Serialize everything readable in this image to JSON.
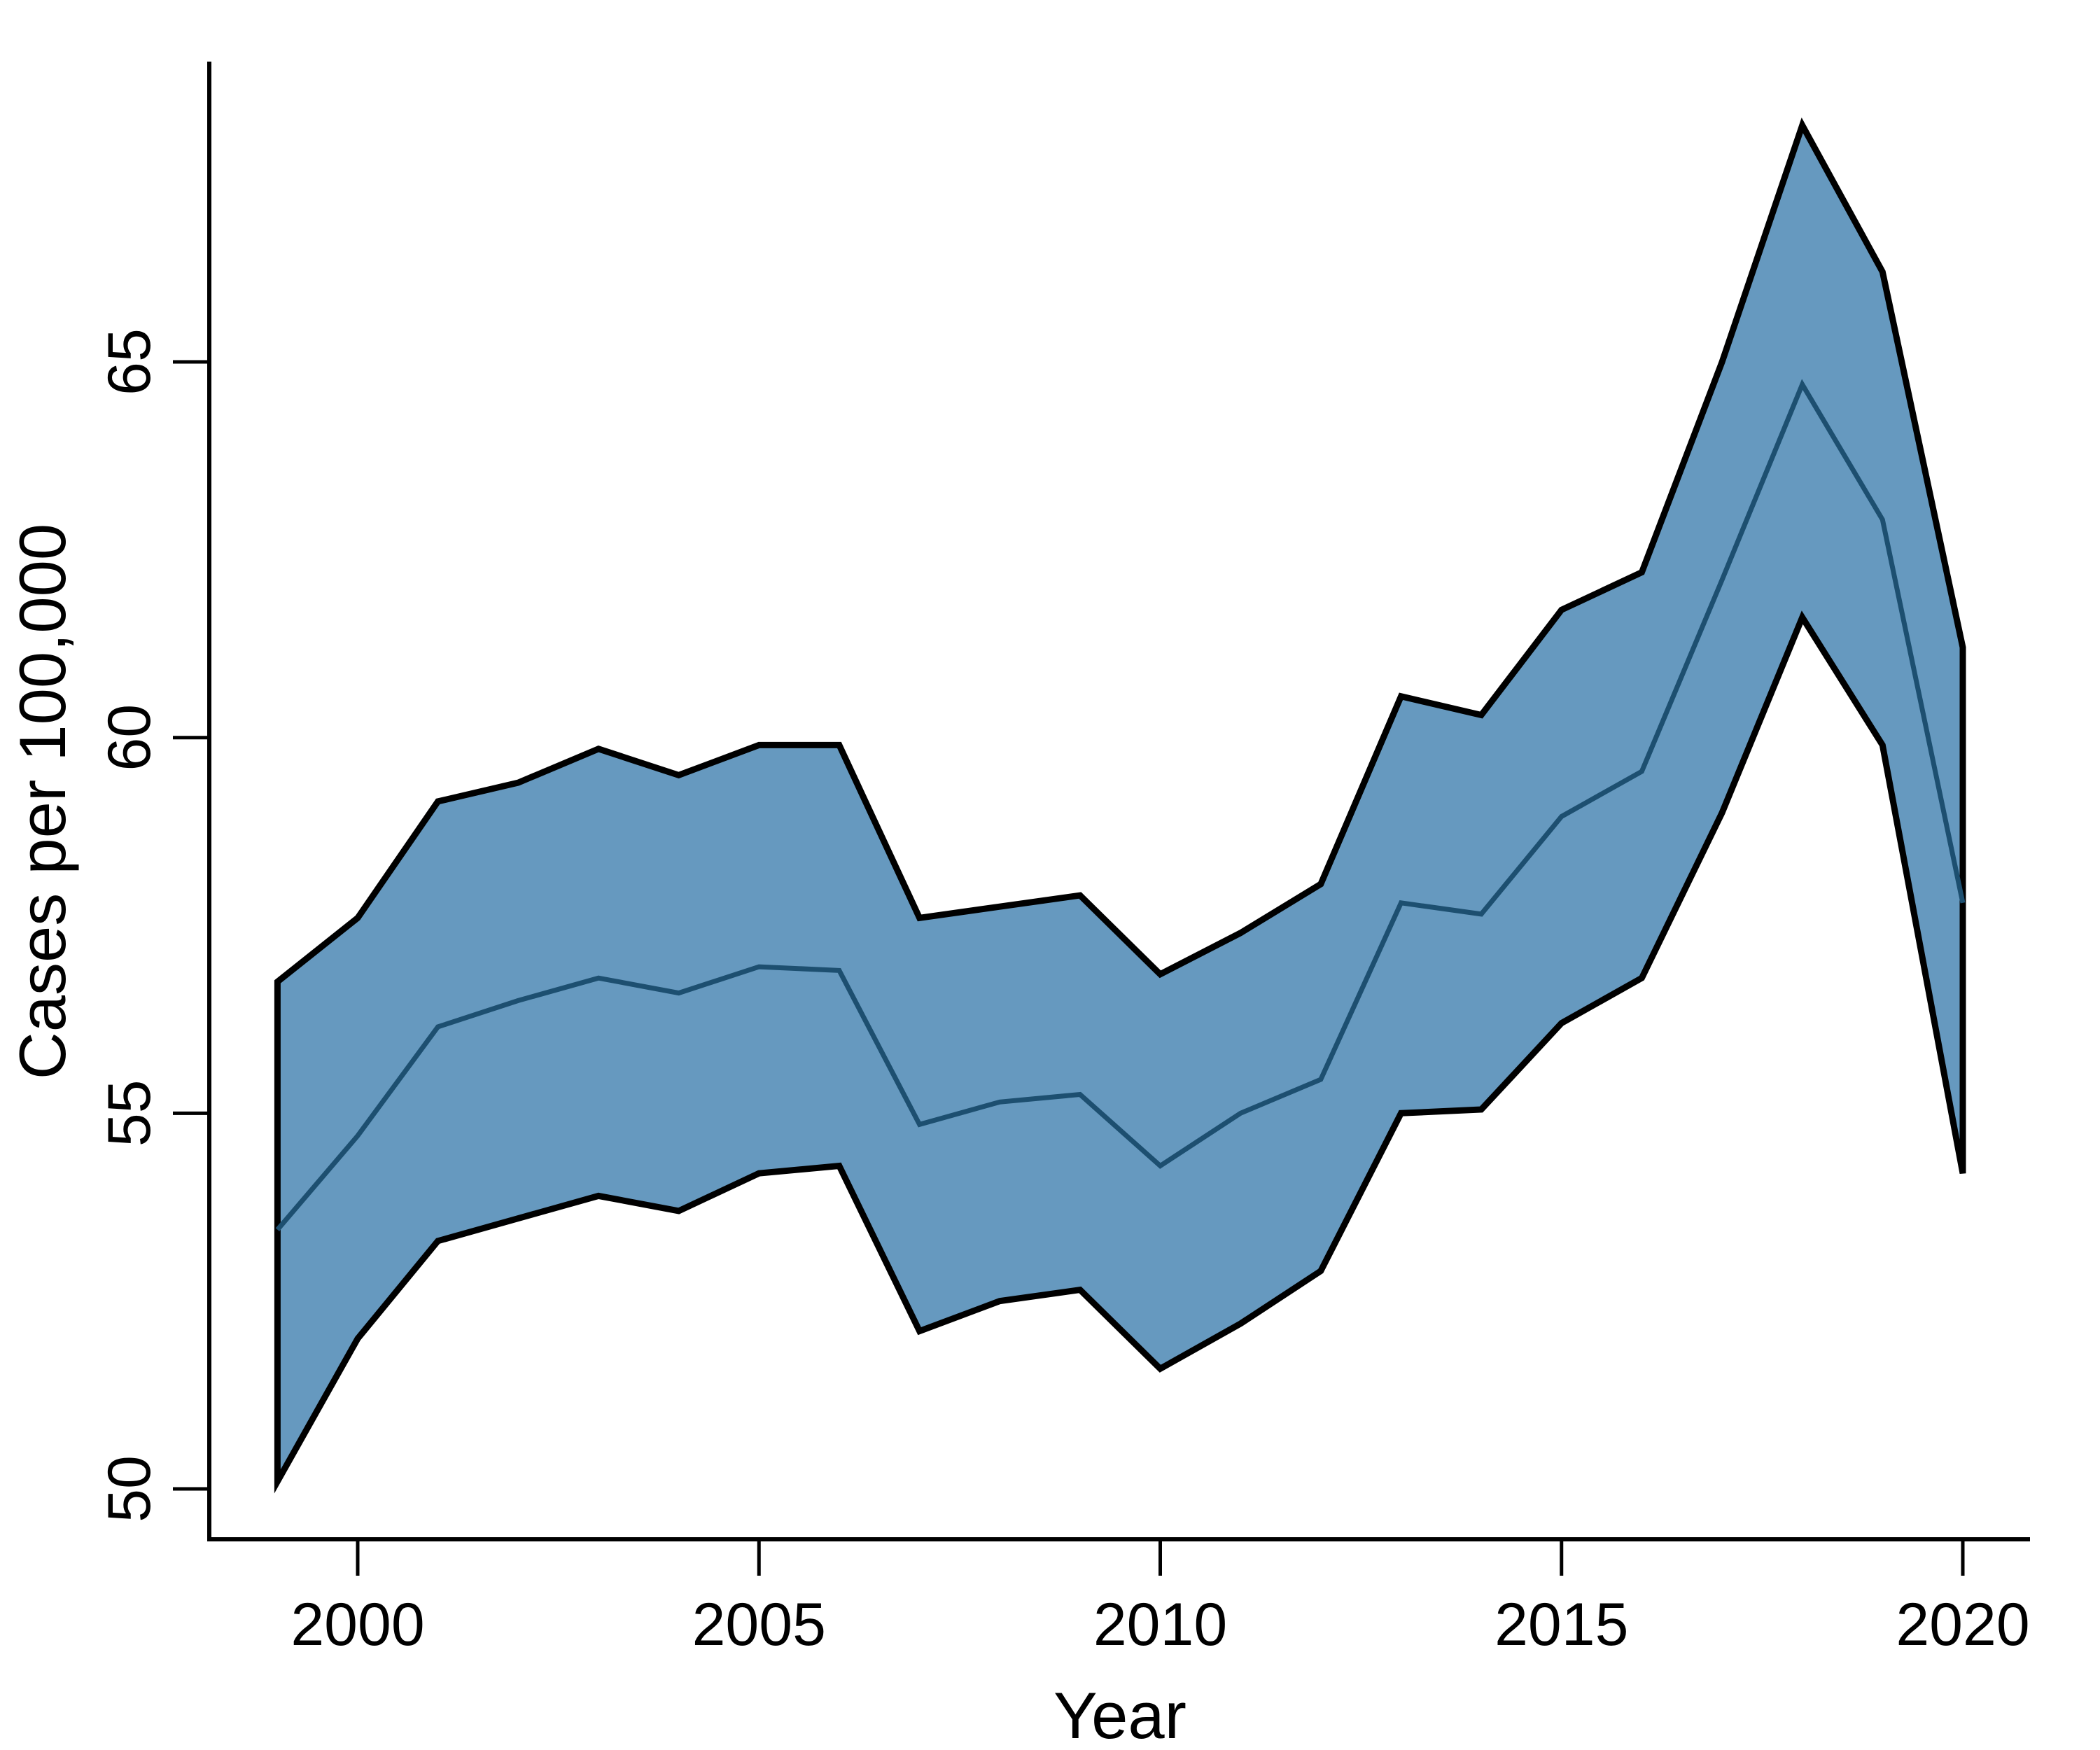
{
  "figure": {
    "background": "#ffffff"
  },
  "chart_data": {
    "type": "area",
    "subtype": "line-with-confidence-band",
    "title": "",
    "xlabel": "Year",
    "ylabel": "Cases per 100,000",
    "x": [
      1999,
      2000,
      2001,
      2002,
      2003,
      2004,
      2005,
      2006,
      2007,
      2008,
      2009,
      2010,
      2011,
      2012,
      2013,
      2014,
      2015,
      2016,
      2017,
      2018,
      2019,
      2020
    ],
    "series": [
      {
        "name": "upper_bound",
        "role": "band-upper",
        "values": [
          56.75,
          57.6,
          59.15,
          59.4,
          59.85,
          59.5,
          59.9,
          59.9,
          57.6,
          57.75,
          57.9,
          56.85,
          57.4,
          58.05,
          60.55,
          60.3,
          61.7,
          62.2,
          65.0,
          68.15,
          66.2,
          61.2
        ]
      },
      {
        "name": "estimate",
        "role": "center-line",
        "values": [
          53.45,
          54.7,
          56.15,
          56.5,
          56.8,
          56.6,
          56.95,
          56.9,
          54.85,
          55.15,
          55.25,
          54.3,
          55.0,
          55.45,
          57.8,
          57.65,
          58.95,
          59.55,
          62.1,
          64.7,
          62.9,
          57.8
        ]
      },
      {
        "name": "lower_bound",
        "role": "band-lower",
        "values": [
          50.1,
          52.0,
          53.3,
          53.6,
          53.9,
          53.7,
          54.2,
          54.3,
          52.1,
          52.5,
          52.65,
          51.6,
          52.2,
          52.9,
          55.0,
          55.05,
          56.2,
          56.8,
          59.0,
          61.6,
          59.9,
          54.2
        ]
      }
    ],
    "x_ticks": [
      2000,
      2005,
      2010,
      2015,
      2020
    ],
    "x_tick_labels": [
      "2000",
      "2005",
      "2010",
      "2015",
      "2020"
    ],
    "y_ticks": [
      50,
      55,
      60,
      65
    ],
    "y_tick_labels": [
      "50",
      "55",
      "60",
      "65"
    ],
    "xlim": [
      1998.15,
      2020.85
    ],
    "ylim": [
      49.3,
      69.0
    ],
    "grid": false,
    "legend": false,
    "band_color": "#6699bf",
    "band_outline_color": "#000000",
    "line_color": "#1d4f70",
    "axis_color": "#000000",
    "tick_label_color": "#000000"
  }
}
